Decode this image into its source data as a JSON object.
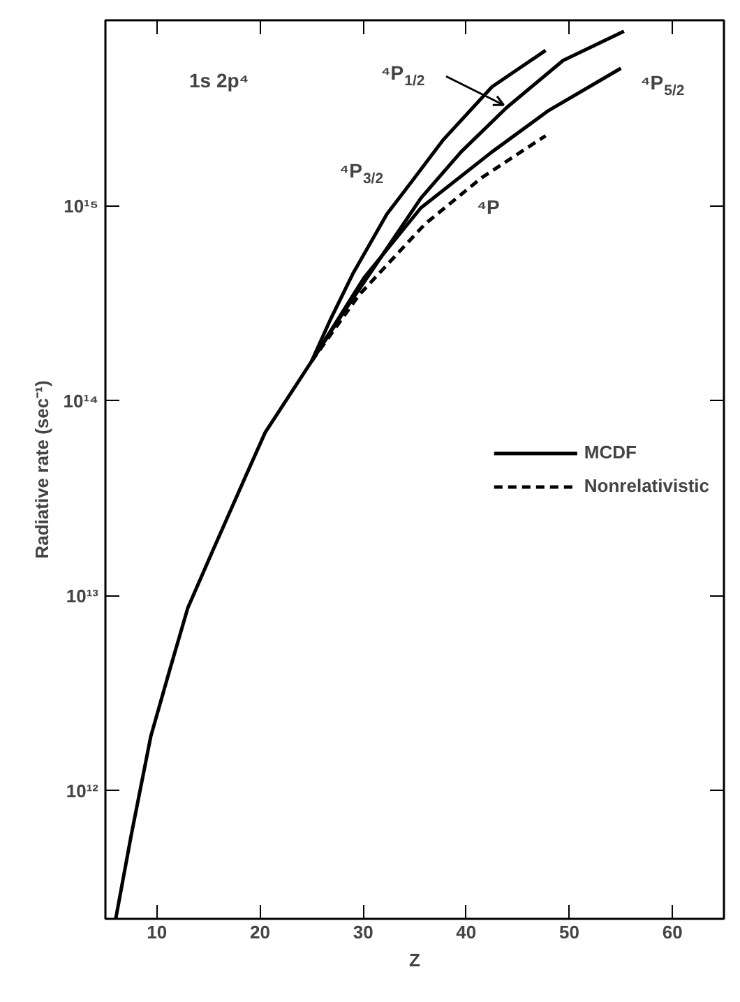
{
  "chart_data": {
    "type": "line",
    "xlabel": "Z",
    "ylabel": "Radiative rate (sec⁻¹)",
    "log": "y",
    "xlim": [
      5,
      65
    ],
    "ylim": [
      220000000000.0,
      9000000000000000.0
    ],
    "xticks": [
      10,
      20,
      30,
      40,
      50,
      60
    ],
    "yticks": [
      {
        "value": 1000000000000.0,
        "label": "10¹²"
      },
      {
        "value": 10000000000000.0,
        "label": "10¹³"
      },
      {
        "value": 100000000000000.0,
        "label": "10¹⁴"
      },
      {
        "value": 1000000000000000.0,
        "label": "10¹⁵"
      }
    ],
    "grid": false,
    "legend": "center right",
    "marker": "none",
    "series": [
      {
        "name": "MCDF",
        "color": "#000000",
        "line_style": "solid",
        "x": [
          6,
          7.5,
          9.4,
          11.2,
          13,
          15.4,
          18.5,
          20.5,
          25,
          26.8,
          29,
          32.3,
          35,
          37.8,
          42.5,
          47.7
        ],
        "values": [
          220000000000.0,
          590000000000.0,
          1900000000000.0,
          4100000000000.0,
          8700000000000.0,
          17000000000000.0,
          40000000000000.0,
          69000000000000.0,
          160000000000000.0,
          260000000000000.0,
          450000000000000.0,
          910000000000000.0,
          1400000000000000.0,
          2200000000000000.0,
          4100000000000000.0,
          6300000000000000.0
        ]
      },
      {
        "color": "#000000",
        "line_style": "solid",
        "x": [
          25,
          28,
          31,
          35.6,
          39.5,
          43.9,
          49.4,
          55.3
        ],
        "values": [
          160000000000000.0,
          280000000000000.0,
          480000000000000.0,
          1100000000000000.0,
          1900000000000000.0,
          3200000000000000.0,
          5600000000000000.0,
          7900000000000000.0
        ]
      },
      {
        "color": "#000000",
        "line_style": "solid",
        "x": [
          25,
          27.5,
          30.1,
          35.6,
          42.5,
          48,
          55
        ],
        "values": [
          160000000000000.0,
          260000000000000.0,
          430000000000000.0,
          980000000000000.0,
          1900000000000000.0,
          3100000000000000.0,
          5100000000000000.0
        ]
      },
      {
        "name": "Nonrelativistic",
        "color": "#000000",
        "line_style": "dashed",
        "x": [
          25,
          29.6,
          36,
          41.5,
          47.7
        ],
        "values": [
          160000000000000.0,
          350000000000000.0,
          810000000000000.0,
          1400000000000000.0,
          2300000000000000.0
        ]
      }
    ],
    "annotations": [
      "1s 2p⁴",
      {
        "text": "⁴P$_{1/2}$",
        "x": 43.9,
        "y": 3200000000000000.0
      },
      {
        "text": "⁴P$_{3/2}$",
        "x": 35,
        "y": 1400000000000000.0
      },
      {
        "text": "⁴P$_{5/2}$",
        "x": 55,
        "y": 5100000000000000.0
      },
      {
        "text": "⁴P",
        "x": 41.5,
        "y": 1400000000000000.0
      }
    ]
  }
}
